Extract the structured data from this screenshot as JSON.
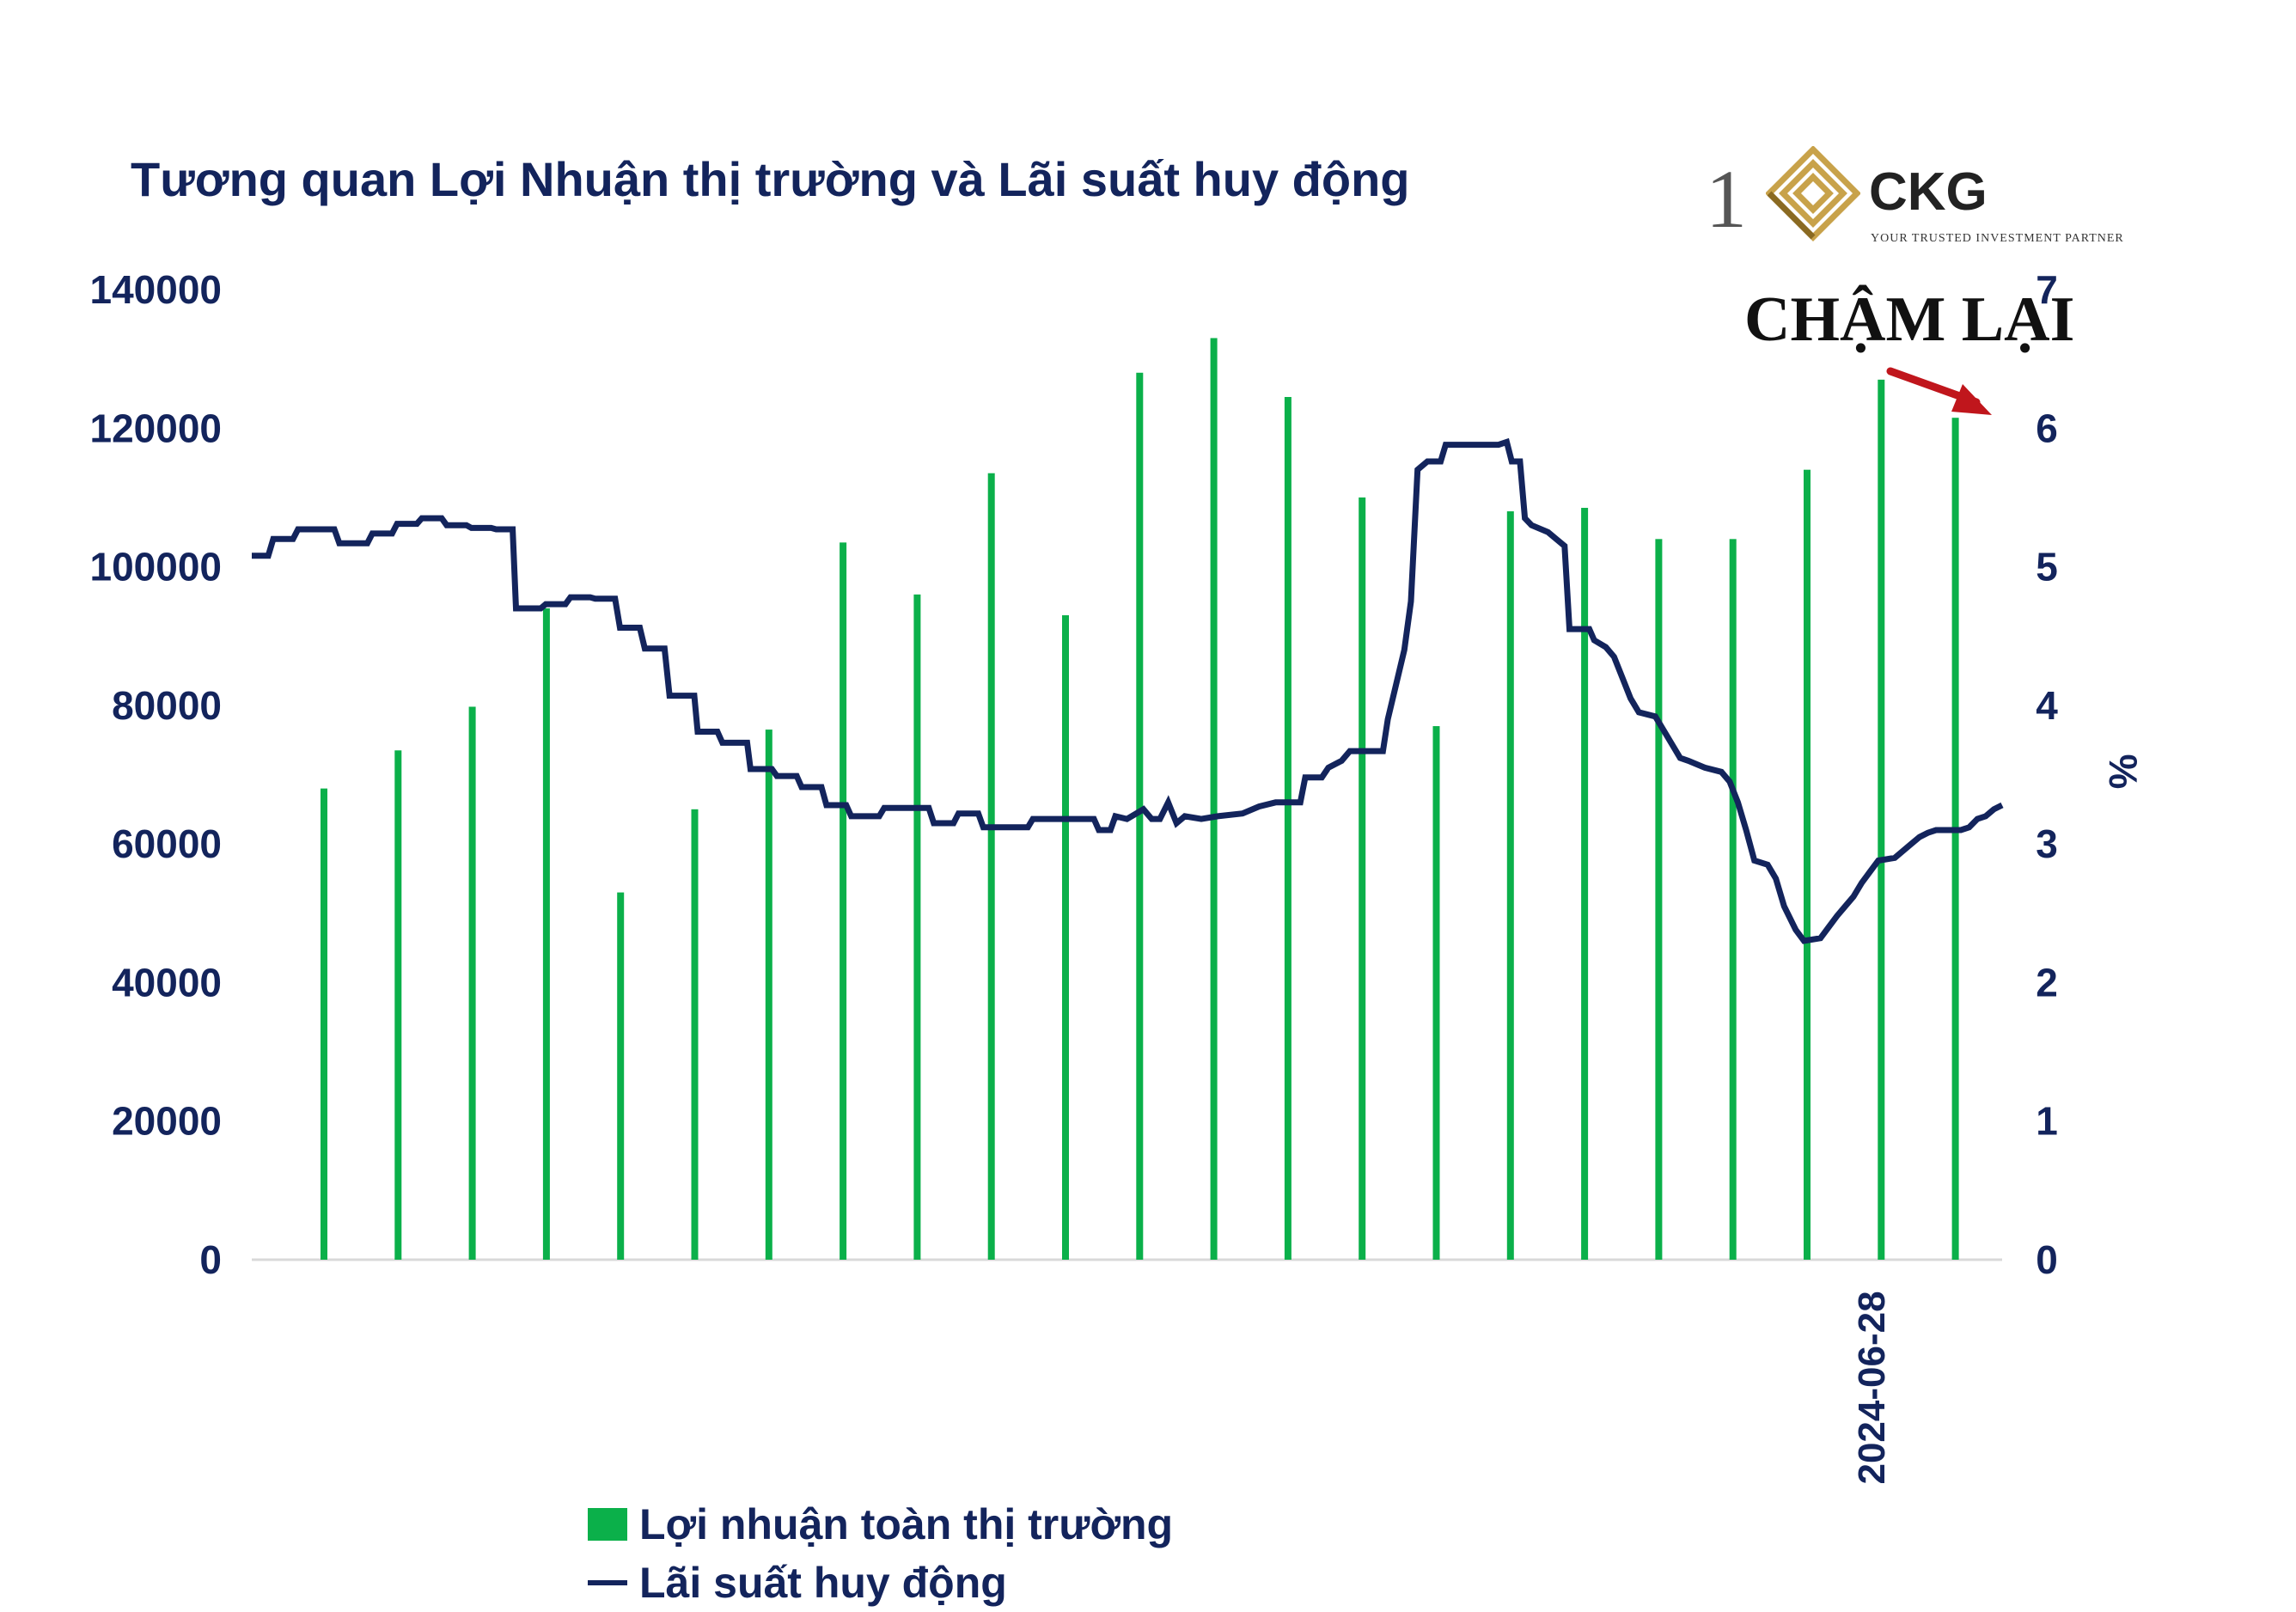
{
  "chart_data": {
    "type": "bar+line",
    "title": "Tương quan Lợi Nhuận thị trường và Lãi suất huy động",
    "logo": {
      "numeral": "1",
      "name": "CKG",
      "tagline": "YOUR TRUSTED INVESTMENT PARTNER"
    },
    "annotation": "CHẬM LẠI",
    "x_tick_labels": [
      "2024-06-28"
    ],
    "y_left": {
      "ylim": [
        0,
        140000
      ],
      "ticks": [
        "0",
        "20000",
        "40000",
        "60000",
        "80000",
        "100000",
        "120000",
        "140000"
      ]
    },
    "y_right": {
      "label": "%",
      "ylim": [
        0,
        7
      ],
      "ticks": [
        "0",
        "1",
        "2",
        "3",
        "4",
        "5",
        "6",
        "7"
      ]
    },
    "legend_position": "bottom",
    "series": [
      {
        "name": "Lợi nhuận toàn thị trường",
        "type": "bar",
        "axis": "left",
        "color": "#0bb04a",
        "values": [
          68000,
          73500,
          79800,
          94000,
          53000,
          65000,
          76500,
          103500,
          96000,
          113500,
          93000,
          128000,
          133000,
          124500,
          110000,
          77000,
          108000,
          108500,
          104000,
          104000,
          114000,
          127000,
          121500
        ]
      },
      {
        "name": "Lãi suất huy động",
        "type": "line",
        "axis": "right",
        "color": "#13245c",
        "points": [
          [
            0.0,
            5.08
          ],
          [
            0.01,
            5.08
          ],
          [
            0.013,
            5.2
          ],
          [
            0.025,
            5.2
          ],
          [
            0.028,
            5.27
          ],
          [
            0.05,
            5.27
          ],
          [
            0.053,
            5.17
          ],
          [
            0.07,
            5.17
          ],
          [
            0.073,
            5.24
          ],
          [
            0.085,
            5.24
          ],
          [
            0.088,
            5.31
          ],
          [
            0.1,
            5.31
          ],
          [
            0.103,
            5.35
          ],
          [
            0.115,
            5.35
          ],
          [
            0.118,
            5.3
          ],
          [
            0.13,
            5.3
          ],
          [
            0.133,
            5.28
          ],
          [
            0.145,
            5.28
          ],
          [
            0.148,
            5.27
          ],
          [
            0.158,
            5.27
          ],
          [
            0.16,
            4.7
          ],
          [
            0.175,
            4.7
          ],
          [
            0.178,
            4.73
          ],
          [
            0.19,
            4.73
          ],
          [
            0.193,
            4.78
          ],
          [
            0.205,
            4.78
          ],
          [
            0.208,
            4.77
          ],
          [
            0.22,
            4.77
          ],
          [
            0.223,
            4.56
          ],
          [
            0.235,
            4.56
          ],
          [
            0.238,
            4.41
          ],
          [
            0.25,
            4.41
          ],
          [
            0.253,
            4.07
          ],
          [
            0.268,
            4.07
          ],
          [
            0.27,
            3.81
          ],
          [
            0.282,
            3.81
          ],
          [
            0.285,
            3.73
          ],
          [
            0.3,
            3.73
          ],
          [
            0.302,
            3.54
          ],
          [
            0.315,
            3.54
          ],
          [
            0.318,
            3.49
          ],
          [
            0.33,
            3.49
          ],
          [
            0.333,
            3.41
          ],
          [
            0.345,
            3.41
          ],
          [
            0.348,
            3.28
          ],
          [
            0.36,
            3.28
          ],
          [
            0.363,
            3.2
          ],
          [
            0.38,
            3.2
          ],
          [
            0.383,
            3.26
          ],
          [
            0.41,
            3.26
          ],
          [
            0.413,
            3.15
          ],
          [
            0.425,
            3.15
          ],
          [
            0.428,
            3.22
          ],
          [
            0.44,
            3.22
          ],
          [
            0.443,
            3.12
          ],
          [
            0.47,
            3.12
          ],
          [
            0.473,
            3.18
          ],
          [
            0.51,
            3.18
          ],
          [
            0.513,
            3.1
          ],
          [
            0.52,
            3.1
          ],
          [
            0.523,
            3.2
          ],
          [
            0.53,
            3.18
          ],
          [
            0.54,
            3.25
          ],
          [
            0.545,
            3.18
          ],
          [
            0.55,
            3.18
          ],
          [
            0.555,
            3.3
          ],
          [
            0.56,
            3.15
          ],
          [
            0.565,
            3.2
          ],
          [
            0.575,
            3.18
          ],
          [
            0.585,
            3.2
          ],
          [
            0.6,
            3.22
          ],
          [
            0.61,
            3.27
          ],
          [
            0.62,
            3.3
          ],
          [
            0.635,
            3.3
          ],
          [
            0.638,
            3.48
          ],
          [
            0.648,
            3.48
          ],
          [
            0.652,
            3.55
          ],
          [
            0.66,
            3.6
          ],
          [
            0.665,
            3.67
          ],
          [
            0.685,
            3.67
          ],
          [
            0.688,
            3.9
          ],
          [
            0.693,
            4.15
          ],
          [
            0.698,
            4.4
          ],
          [
            0.702,
            4.75
          ],
          [
            0.706,
            5.7
          ],
          [
            0.712,
            5.76
          ],
          [
            0.72,
            5.76
          ],
          [
            0.723,
            5.88
          ],
          [
            0.755,
            5.88
          ],
          [
            0.76,
            5.9
          ],
          [
            0.763,
            5.76
          ],
          [
            0.768,
            5.76
          ],
          [
            0.771,
            5.35
          ],
          [
            0.775,
            5.3
          ],
          [
            0.785,
            5.25
          ],
          [
            0.79,
            5.2
          ],
          [
            0.795,
            5.15
          ],
          [
            0.798,
            4.55
          ],
          [
            0.81,
            4.55
          ],
          [
            0.813,
            4.47
          ],
          [
            0.82,
            4.42
          ],
          [
            0.825,
            4.35
          ],
          [
            0.83,
            4.2
          ],
          [
            0.835,
            4.05
          ],
          [
            0.84,
            3.95
          ],
          [
            0.85,
            3.92
          ],
          [
            0.855,
            3.82
          ],
          [
            0.86,
            3.72
          ],
          [
            0.865,
            3.62
          ],
          [
            0.87,
            3.6
          ],
          [
            0.88,
            3.55
          ],
          [
            0.89,
            3.52
          ],
          [
            0.895,
            3.45
          ],
          [
            0.9,
            3.3
          ],
          [
            0.905,
            3.1
          ],
          [
            0.91,
            2.88
          ],
          [
            0.918,
            2.85
          ],
          [
            0.923,
            2.75
          ],
          [
            0.928,
            2.55
          ],
          [
            0.935,
            2.38
          ],
          [
            0.94,
            2.3
          ],
          [
            0.95,
            2.32
          ],
          [
            0.955,
            2.4
          ],
          [
            0.96,
            2.48
          ],
          [
            0.965,
            2.55
          ],
          [
            0.97,
            2.62
          ],
          [
            0.975,
            2.72
          ],
          [
            0.98,
            2.8
          ],
          [
            0.985,
            2.88
          ],
          [
            0.995,
            2.9
          ],
          [
            1.0,
            2.95
          ],
          [
            1.005,
            3.0
          ],
          [
            1.01,
            3.05
          ],
          [
            1.015,
            3.08
          ],
          [
            1.02,
            3.1
          ],
          [
            1.035,
            3.1
          ],
          [
            1.04,
            3.12
          ],
          [
            1.045,
            3.18
          ],
          [
            1.05,
            3.2
          ],
          [
            1.055,
            3.25
          ],
          [
            1.06,
            3.28
          ]
        ]
      }
    ]
  }
}
